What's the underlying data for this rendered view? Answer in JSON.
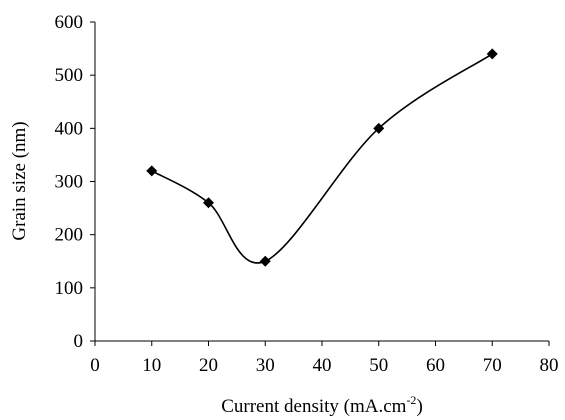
{
  "chart_data": {
    "type": "line",
    "title": "",
    "xlabel": "Current density (mA.cm",
    "xlabel_superscript": "-2",
    "xlabel_suffix": ")",
    "ylabel": "Grain size (nm)",
    "xlim": [
      0,
      80
    ],
    "ylim": [
      0,
      600
    ],
    "x_ticks": [
      "0",
      "10",
      "20",
      "30",
      "40",
      "50",
      "60",
      "70",
      "80"
    ],
    "y_ticks": [
      "0",
      "100",
      "200",
      "300",
      "400",
      "500",
      "600"
    ],
    "grid": false,
    "legend": "none",
    "marker": "diamond",
    "line_style": "smooth",
    "color": "#000000",
    "series": [
      {
        "x": [
          10,
          20,
          30,
          50,
          70
        ],
        "y": [
          320,
          260,
          150,
          400,
          540
        ]
      }
    ]
  }
}
